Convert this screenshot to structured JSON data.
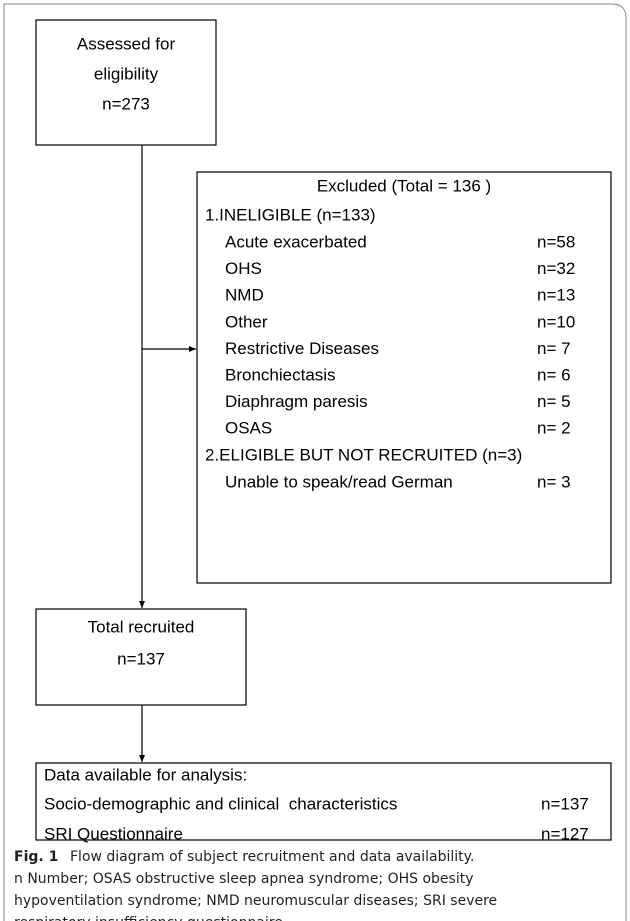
{
  "nodes": [
    {
      "lines": [
        "Assessed for",
        "eligibility",
        "n=273"
      ]
    },
    {
      "title": "Excluded (Total = 136 )",
      "groups": [
        {
          "heading": "1.INELIGIBLE (n=133)",
          "items": [
            {
              "label": "Acute exacerbated",
              "count": "n=58"
            },
            {
              "label": "OHS",
              "count": "n=32"
            },
            {
              "label": "NMD",
              "count": "n=13"
            },
            {
              "label": "Other",
              "count": "n=10"
            },
            {
              "label": "Restrictive Diseases",
              "count": "n= 7"
            },
            {
              "label": "Bronchiectasis",
              "count": "n= 6"
            },
            {
              "label": "Diaphragm paresis",
              "count": "n= 5"
            },
            {
              "label": "OSAS",
              "count": "n= 2"
            }
          ]
        },
        {
          "heading": "2.ELIGIBLE BUT NOT RECRUITED (n=3)",
          "items": [
            {
              "label": "Unable to speak/read German",
              "count": "n= 3"
            }
          ]
        }
      ]
    },
    {
      "lines": [
        "Total recruited",
        "n=137"
      ]
    },
    {
      "title": "Data available for analysis:",
      "items": [
        {
          "label": "Socio-demographic and clinical  characteristics",
          "count": "n=137"
        },
        {
          "label": "SRI Questionnaire",
          "count": "n=127"
        }
      ]
    }
  ],
  "caption": {
    "label": "Fig. 1",
    "lines": [
      "Flow diagram of subject recruitment and data availability.",
      "n Number; OSAS obstructive sleep apnea syndrome; OHS obesity",
      "hypoventilation syndrome; NMD neuromuscular diseases; SRI severe",
      "respiratory insufficiency questionnaire"
    ]
  }
}
